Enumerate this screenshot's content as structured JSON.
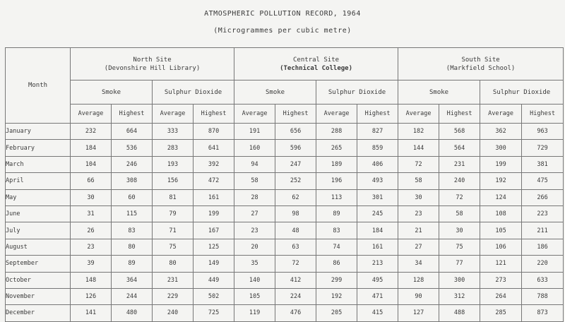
{
  "title": "ATMOSPHERIC POLLUTION RECORD, 1964",
  "subtitle": "(Microgrammes per cubic metre)",
  "month_header": "Month",
  "sites": [
    {
      "name": "North Site",
      "location": "(Devonshire Hill Library)"
    },
    {
      "name": "Central Site",
      "location": "(Technical College)"
    },
    {
      "name": "South Site",
      "location": "(Markfield School)"
    }
  ],
  "pollutants": [
    "Smoke",
    "Sulphur Dioxide"
  ],
  "stats": [
    "Average",
    "Highest"
  ],
  "rows": [
    {
      "month": "January",
      "values": [
        "232",
        "664",
        "333",
        "870",
        "191",
        "656",
        "288",
        "827",
        "182",
        "568",
        "362",
        "963"
      ]
    },
    {
      "month": "February",
      "values": [
        "184",
        "536",
        "283",
        "641",
        "160",
        "596",
        "265",
        "859",
        "144",
        "564",
        "300",
        "729"
      ]
    },
    {
      "month": "March",
      "values": [
        "104",
        "246",
        "193",
        "392",
        "94",
        "247",
        "189",
        "406",
        "72",
        "231",
        "199",
        "381"
      ]
    },
    {
      "month": "April",
      "values": [
        "66",
        "308",
        "156",
        "472",
        "58",
        "252",
        "196",
        "493",
        "58",
        "240",
        "192",
        "475"
      ]
    },
    {
      "month": "May",
      "values": [
        "30",
        "60",
        "81",
        "161",
        "28",
        "62",
        "113",
        "301",
        "30",
        "72",
        "124",
        "266"
      ]
    },
    {
      "month": "June",
      "values": [
        "31",
        "115",
        "79",
        "199",
        "27",
        "98",
        "89",
        "245",
        "23",
        "58",
        "108",
        "223"
      ]
    },
    {
      "month": "July",
      "values": [
        "26",
        "83",
        "71",
        "167",
        "23",
        "48",
        "83",
        "184",
        "21",
        "30",
        "105",
        "211"
      ]
    },
    {
      "month": "August",
      "values": [
        "23",
        "80",
        "75",
        "125",
        "20",
        "63",
        "74",
        "161",
        "27",
        "75",
        "106",
        "186"
      ]
    },
    {
      "month": "September",
      "values": [
        "39",
        "89",
        "80",
        "149",
        "35",
        "72",
        "86",
        "213",
        "34",
        "77",
        "121",
        "220"
      ]
    },
    {
      "month": "October",
      "values": [
        "148",
        "364",
        "231",
        "449",
        "140",
        "412",
        "299",
        "495",
        "128",
        "300",
        "273",
        "633"
      ]
    },
    {
      "month": "November",
      "values": [
        "126",
        "244",
        "229",
        "502",
        "105",
        "224",
        "192",
        "471",
        "90",
        "312",
        "264",
        "788"
      ]
    },
    {
      "month": "December",
      "values": [
        "141",
        "480",
        "240",
        "725",
        "119",
        "476",
        "205",
        "415",
        "127",
        "488",
        "285",
        "873"
      ]
    }
  ]
}
